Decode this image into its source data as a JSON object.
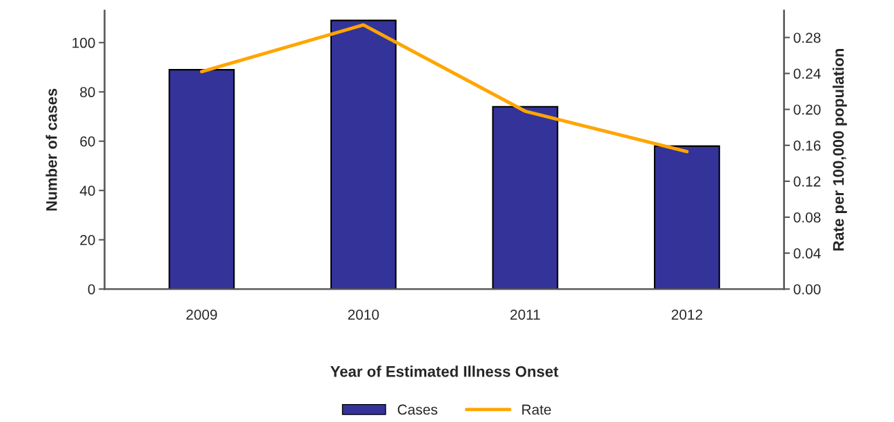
{
  "chart_data": {
    "type": "bar",
    "xlabel": "Year of Estimated Illness Onset",
    "ylabel": "Number of cases",
    "y2label": "Rate per 100,000 population",
    "categories": [
      "2009",
      "2010",
      "2011",
      "2012"
    ],
    "series": [
      {
        "name": "Cases",
        "color": "#333399",
        "values": [
          89,
          109,
          74,
          58
        ]
      },
      {
        "name": "Rate",
        "type": "line",
        "axis": "y2",
        "color": "#ffa500",
        "values": [
          0.242,
          0.294,
          0.198,
          0.153
        ]
      }
    ],
    "ylim": [
      0,
      113
    ],
    "yticks": [
      0,
      20,
      40,
      60,
      80,
      100
    ],
    "y2lim": [
      0,
      0.31
    ],
    "y2ticks": [
      {
        "value": 0,
        "label": "0.00"
      },
      {
        "value": 0.04,
        "label": "0.04"
      },
      {
        "value": 0.08,
        "label": "0.08"
      },
      {
        "value": 0.12,
        "label": "0.12"
      },
      {
        "value": 0.16,
        "label": "0.16"
      },
      {
        "value": 0.2,
        "label": "0.20"
      },
      {
        "value": 0.24,
        "label": "0.24"
      },
      {
        "value": 0.28,
        "label": "0.28"
      }
    ],
    "grid": false,
    "legend": "bottom",
    "marker": "none"
  }
}
